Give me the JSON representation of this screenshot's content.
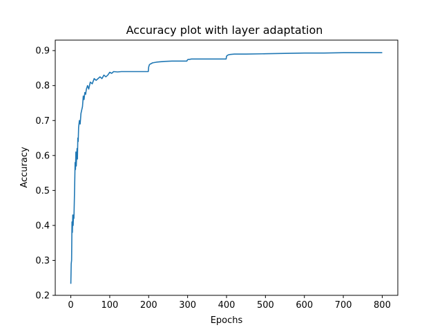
{
  "chart_data": {
    "type": "line",
    "title": "Accuracy plot with layer adaptation",
    "xlabel": "Epochs",
    "ylabel": "Accuracy",
    "xlim": [
      -40,
      840
    ],
    "ylim": [
      0.2,
      0.93
    ],
    "x_ticks": [
      0,
      100,
      200,
      300,
      400,
      500,
      600,
      700,
      800
    ],
    "y_ticks": [
      0.2,
      0.3,
      0.4,
      0.5,
      0.6,
      0.7,
      0.8,
      0.9
    ],
    "x_tick_labels": [
      "0",
      "100",
      "200",
      "300",
      "400",
      "500",
      "600",
      "700",
      "800"
    ],
    "y_tick_labels": [
      "0.2",
      "0.3",
      "0.4",
      "0.5",
      "0.6",
      "0.7",
      "0.8",
      "0.9"
    ],
    "grid": false,
    "color": "#1f77b4",
    "series": [
      {
        "x": [
          0,
          1,
          2,
          3,
          4,
          5,
          6,
          7,
          8,
          9,
          10,
          11,
          12,
          13,
          14,
          15,
          16,
          17,
          18,
          19,
          20,
          22,
          24,
          26,
          28,
          30,
          32,
          34,
          36,
          38,
          40,
          43,
          46,
          50,
          55,
          60,
          65,
          70,
          75,
          80,
          85,
          90,
          95,
          100,
          105,
          110,
          120,
          130,
          150,
          170,
          199,
          200,
          202,
          205,
          210,
          220,
          240,
          260,
          280,
          298,
          300,
          302,
          305,
          310,
          330,
          360,
          399,
          400,
          402,
          405,
          410,
          420,
          450,
          500,
          550,
          600,
          650,
          700,
          750,
          800
        ],
        "y": [
          0.233,
          0.29,
          0.3,
          0.41,
          0.38,
          0.43,
          0.4,
          0.43,
          0.42,
          0.47,
          0.52,
          0.58,
          0.56,
          0.61,
          0.57,
          0.6,
          0.62,
          0.59,
          0.65,
          0.64,
          0.68,
          0.7,
          0.69,
          0.72,
          0.73,
          0.74,
          0.77,
          0.76,
          0.78,
          0.775,
          0.79,
          0.8,
          0.79,
          0.81,
          0.805,
          0.82,
          0.815,
          0.82,
          0.825,
          0.82,
          0.83,
          0.825,
          0.83,
          0.838,
          0.835,
          0.84,
          0.839,
          0.84,
          0.84,
          0.84,
          0.84,
          0.853,
          0.86,
          0.862,
          0.865,
          0.867,
          0.869,
          0.87,
          0.87,
          0.87,
          0.874,
          0.875,
          0.875,
          0.876,
          0.876,
          0.876,
          0.876,
          0.884,
          0.886,
          0.888,
          0.889,
          0.89,
          0.89,
          0.891,
          0.892,
          0.893,
          0.893,
          0.894,
          0.894,
          0.894
        ]
      }
    ]
  }
}
